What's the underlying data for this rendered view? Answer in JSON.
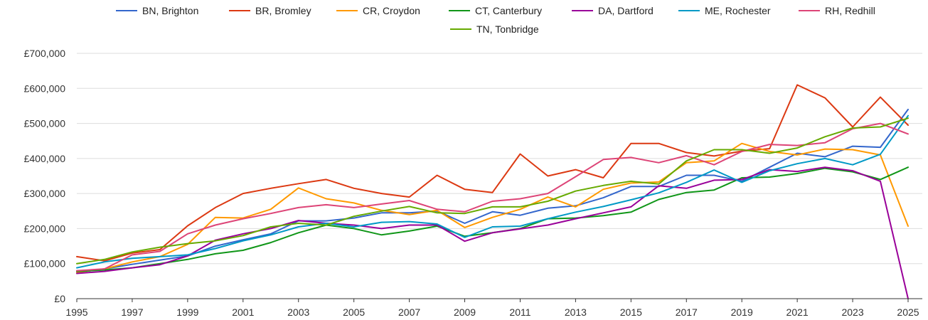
{
  "chart_data": {
    "type": "line",
    "title": "",
    "xlabel": "",
    "ylabel": "",
    "x": [
      1995,
      1996,
      1997,
      1998,
      1999,
      2000,
      2001,
      2002,
      2003,
      2004,
      2005,
      2006,
      2007,
      2008,
      2009,
      2010,
      2011,
      2012,
      2013,
      2014,
      2015,
      2016,
      2017,
      2018,
      2019,
      2020,
      2021,
      2022,
      2023,
      2024,
      2025
    ],
    "xlim": [
      1995,
      2025
    ],
    "ylim": [
      0,
      700000
    ],
    "x_ticks": [
      1995,
      1997,
      1999,
      2001,
      2003,
      2005,
      2007,
      2009,
      2011,
      2013,
      2015,
      2017,
      2019,
      2021,
      2023,
      2025
    ],
    "y_ticks": [
      0,
      100000,
      200000,
      300000,
      400000,
      500000,
      600000,
      700000
    ],
    "x_tick_labels": [
      "1995",
      "1997",
      "1999",
      "2001",
      "2003",
      "2005",
      "2007",
      "2009",
      "2011",
      "2013",
      "2015",
      "2017",
      "2019",
      "2021",
      "2023",
      "2025"
    ],
    "y_tick_labels": [
      "£0",
      "£100,000",
      "£200,000",
      "£300,000",
      "£400,000",
      "£500,000",
      "£600,000",
      "£700,000"
    ],
    "grid": true,
    "legend_position": "top-center",
    "series": [
      {
        "name": "BN, Brighton",
        "color": "#3366cc",
        "values": [
          75000,
          85000,
          98000,
          110000,
          122000,
          150000,
          168000,
          185000,
          222000,
          222000,
          230000,
          245000,
          245000,
          250000,
          215000,
          248000,
          238000,
          258000,
          265000,
          288000,
          320000,
          320000,
          352000,
          352000,
          335000,
          375000,
          415000,
          405000,
          435000,
          432000,
          540000
        ]
      },
      {
        "name": "BR, Bromley",
        "color": "#dc3912",
        "values": [
          120000,
          108000,
          130000,
          140000,
          208000,
          260000,
          300000,
          315000,
          328000,
          340000,
          315000,
          300000,
          290000,
          352000,
          312000,
          303000,
          413000,
          350000,
          368000,
          345000,
          443000,
          443000,
          417000,
          407000,
          421000,
          428000,
          610000,
          573000,
          490000,
          575000,
          495000
        ]
      },
      {
        "name": "CR, Croydon",
        "color": "#ff9900",
        "values": [
          75000,
          85000,
          105000,
          120000,
          155000,
          232000,
          230000,
          255000,
          316000,
          285000,
          273000,
          252000,
          240000,
          252000,
          203000,
          232000,
          255000,
          290000,
          262000,
          312000,
          330000,
          333000,
          388000,
          393000,
          443000,
          420000,
          410000,
          427000,
          425000,
          410000,
          207000
        ]
      },
      {
        "name": "CT, Canterbury",
        "color": "#109618",
        "values": [
          78000,
          82000,
          88000,
          100000,
          112000,
          128000,
          138000,
          160000,
          188000,
          210000,
          200000,
          182000,
          193000,
          207000,
          178000,
          188000,
          200000,
          228000,
          230000,
          237000,
          247000,
          283000,
          303000,
          310000,
          345000,
          347000,
          357000,
          372000,
          362000,
          340000,
          375000
        ]
      },
      {
        "name": "DA, Dartford",
        "color": "#990099",
        "values": [
          72000,
          78000,
          88000,
          97000,
          122000,
          167000,
          185000,
          200000,
          223000,
          215000,
          210000,
          200000,
          210000,
          210000,
          164000,
          188000,
          199000,
          210000,
          228000,
          245000,
          262000,
          322000,
          315000,
          338000,
          340000,
          368000,
          363000,
          375000,
          365000,
          335000,
          0
        ]
      },
      {
        "name": "ME, Rochester",
        "color": "#0099c6",
        "values": [
          88000,
          105000,
          115000,
          120000,
          125000,
          143000,
          165000,
          182000,
          205000,
          215000,
          205000,
          218000,
          220000,
          213000,
          175000,
          205000,
          207000,
          228000,
          247000,
          263000,
          282000,
          302000,
          332000,
          367000,
          332000,
          365000,
          385000,
          400000,
          382000,
          412000,
          522000
        ]
      },
      {
        "name": "RH, Redhill",
        "color": "#dd4477",
        "values": [
          80000,
          85000,
          125000,
          135000,
          185000,
          210000,
          228000,
          243000,
          260000,
          268000,
          260000,
          270000,
          280000,
          255000,
          248000,
          278000,
          285000,
          300000,
          348000,
          397000,
          403000,
          388000,
          408000,
          382000,
          420000,
          440000,
          437000,
          445000,
          485000,
          500000,
          470000
        ]
      },
      {
        "name": "TN, Tonbridge",
        "color": "#66aa00",
        "values": [
          100000,
          112000,
          133000,
          147000,
          157000,
          165000,
          180000,
          205000,
          215000,
          210000,
          235000,
          250000,
          263000,
          245000,
          243000,
          262000,
          262000,
          278000,
          307000,
          323000,
          335000,
          327000,
          393000,
          425000,
          425000,
          415000,
          430000,
          462000,
          487000,
          490000,
          515000
        ]
      }
    ]
  }
}
